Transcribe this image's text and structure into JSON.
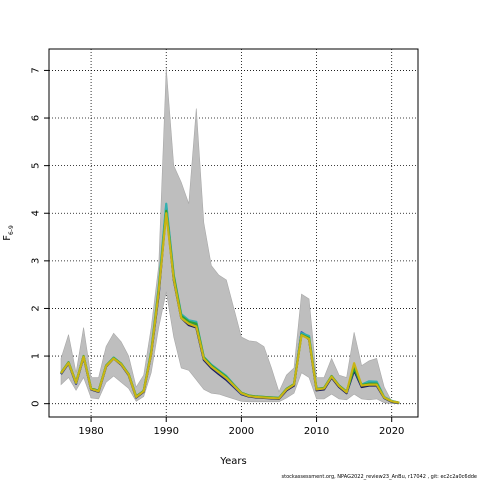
{
  "chart_data": {
    "type": "area",
    "xlabel": "Years",
    "ylabel": "F",
    "ylabel_sub": "6-9",
    "footer": "stockassessment.org, NPAG2022_review23_AnBu, r17042 , git: ec2c2a0c6dde",
    "xlim": [
      1974.4,
      2023.5
    ],
    "ylim": [
      -0.28,
      7.45
    ],
    "xticks": [
      1980,
      1990,
      2000,
      2010,
      2020
    ],
    "yticks": [
      0,
      1,
      2,
      3,
      4,
      5,
      6,
      7
    ],
    "grid": true,
    "colors": {
      "band": "#bebebe",
      "band_edge": "#a8a8a8",
      "lines": [
        "#1a1a5a",
        "#2a4dbf",
        "#33b0b0",
        "#2ea02e",
        "#c8b414"
      ]
    },
    "x": [
      1976,
      1977,
      1978,
      1979,
      1980,
      1981,
      1982,
      1983,
      1984,
      1985,
      1986,
      1987,
      1988,
      1989,
      1990,
      1991,
      1992,
      1993,
      1994,
      1995,
      1996,
      1997,
      1998,
      1999,
      2000,
      2001,
      2002,
      2003,
      2004,
      2005,
      2006,
      2007,
      2008,
      2009,
      2010,
      2011,
      2012,
      2013,
      2014,
      2015,
      2016,
      2017,
      2018,
      2019,
      2020,
      2021
    ],
    "band_upper": [
      0.95,
      1.45,
      0.65,
      1.6,
      0.55,
      0.55,
      1.2,
      1.48,
      1.3,
      1.0,
      0.35,
      0.6,
      1.6,
      2.9,
      7.05,
      5.0,
      4.65,
      4.2,
      6.2,
      3.8,
      2.9,
      2.7,
      2.6,
      2.0,
      1.4,
      1.32,
      1.3,
      1.2,
      0.75,
      0.25,
      0.6,
      0.75,
      2.3,
      2.2,
      0.55,
      0.55,
      0.95,
      0.6,
      0.55,
      1.5,
      0.8,
      0.9,
      0.95,
      0.35,
      0.05,
      0.03
    ],
    "band_lower": [
      0.4,
      0.55,
      0.28,
      0.55,
      0.12,
      0.1,
      0.45,
      0.58,
      0.45,
      0.32,
      0.05,
      0.15,
      0.65,
      1.6,
      2.35,
      1.4,
      0.75,
      0.7,
      0.5,
      0.3,
      0.22,
      0.2,
      0.15,
      0.1,
      0.05,
      0.04,
      0.04,
      0.04,
      0.04,
      0.04,
      0.12,
      0.22,
      0.65,
      0.55,
      0.1,
      0.1,
      0.2,
      0.1,
      0.08,
      0.2,
      0.1,
      0.08,
      0.1,
      0.02,
      0.0,
      0.0
    ],
    "series": [
      {
        "values": [
          0.62,
          0.85,
          0.42,
          0.98,
          0.3,
          0.25,
          0.78,
          0.95,
          0.82,
          0.6,
          0.13,
          0.25,
          1.05,
          2.3,
          4.1,
          2.6,
          1.8,
          1.65,
          1.6,
          0.92,
          0.75,
          0.62,
          0.5,
          0.35,
          0.2,
          0.15,
          0.13,
          0.12,
          0.11,
          0.1,
          0.28,
          0.38,
          1.48,
          1.35,
          0.28,
          0.3,
          0.55,
          0.35,
          0.22,
          0.7,
          0.35,
          0.38,
          0.38,
          0.12,
          0.04,
          0.01
        ]
      },
      {
        "values": [
          0.63,
          0.86,
          0.43,
          0.99,
          0.31,
          0.26,
          0.79,
          0.96,
          0.83,
          0.61,
          0.14,
          0.26,
          1.07,
          2.35,
          4.15,
          2.65,
          1.84,
          1.7,
          1.65,
          0.95,
          0.78,
          0.65,
          0.53,
          0.37,
          0.21,
          0.16,
          0.14,
          0.13,
          0.12,
          0.11,
          0.3,
          0.4,
          1.5,
          1.4,
          0.3,
          0.32,
          0.57,
          0.37,
          0.24,
          0.74,
          0.38,
          0.45,
          0.44,
          0.13,
          0.05,
          0.02
        ]
      },
      {
        "values": [
          0.64,
          0.87,
          0.44,
          1.0,
          0.32,
          0.27,
          0.8,
          0.97,
          0.84,
          0.62,
          0.15,
          0.27,
          1.1,
          2.45,
          4.2,
          2.7,
          1.88,
          1.75,
          1.72,
          0.98,
          0.82,
          0.7,
          0.58,
          0.4,
          0.23,
          0.17,
          0.15,
          0.14,
          0.13,
          0.12,
          0.31,
          0.41,
          1.48,
          1.42,
          0.31,
          0.33,
          0.58,
          0.38,
          0.25,
          0.76,
          0.4,
          0.47,
          0.46,
          0.14,
          0.06,
          0.02
        ]
      },
      {
        "values": [
          0.65,
          0.87,
          0.45,
          1.0,
          0.32,
          0.27,
          0.8,
          0.96,
          0.84,
          0.62,
          0.15,
          0.27,
          1.08,
          2.4,
          4.05,
          2.68,
          1.84,
          1.72,
          1.68,
          0.97,
          0.8,
          0.68,
          0.56,
          0.39,
          0.23,
          0.17,
          0.15,
          0.14,
          0.13,
          0.12,
          0.31,
          0.41,
          1.45,
          1.38,
          0.31,
          0.33,
          0.58,
          0.38,
          0.25,
          0.75,
          0.39,
          0.42,
          0.42,
          0.13,
          0.05,
          0.02
        ]
      },
      {
        "values": [
          0.64,
          0.86,
          0.44,
          0.99,
          0.31,
          0.26,
          0.79,
          0.95,
          0.83,
          0.61,
          0.14,
          0.26,
          1.06,
          2.36,
          4.0,
          2.62,
          1.8,
          1.68,
          1.62,
          0.95,
          0.78,
          0.66,
          0.54,
          0.38,
          0.22,
          0.16,
          0.14,
          0.13,
          0.12,
          0.11,
          0.3,
          0.4,
          1.44,
          1.36,
          0.3,
          0.32,
          0.57,
          0.37,
          0.24,
          0.85,
          0.38,
          0.4,
          0.4,
          0.13,
          0.05,
          0.02
        ]
      }
    ]
  }
}
